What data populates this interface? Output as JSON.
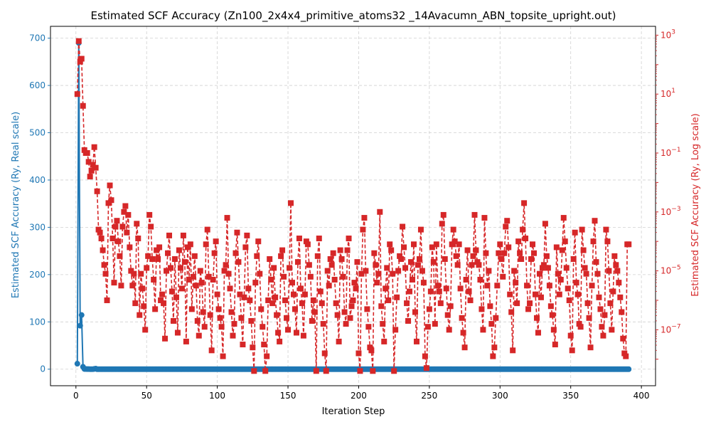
{
  "chart_data": {
    "type": "line",
    "title": "Estimated SCF Accuracy (Zn100_2x4x4_primitive_atoms32 _14Avacumn_ABN_topsite_upright.out)",
    "xlabel": "Iteration Step",
    "ylabel_left": "Estimated SCF Accuracy (Ry, Real scale)",
    "ylabel_right": "Estimated SCF Accuracy (Ry, Log scale)",
    "xlim": [
      -18,
      410
    ],
    "ylim_left": [
      -35,
      725
    ],
    "ylim_right_log10": [
      -8.9,
      3.3
    ],
    "x_ticks": [
      0,
      50,
      100,
      150,
      200,
      250,
      300,
      350,
      400
    ],
    "y_ticks_left": [
      0,
      100,
      200,
      300,
      400,
      500,
      600,
      700
    ],
    "y_ticks_right": [
      {
        "exp": 3,
        "label_base": "10",
        "label_exp": "3"
      },
      {
        "exp": 1,
        "label_base": "10",
        "label_exp": "1"
      },
      {
        "exp": -1,
        "label_base": "10",
        "label_exp": "−1"
      },
      {
        "exp": -3,
        "label_base": "10",
        "label_exp": "−3"
      },
      {
        "exp": -5,
        "label_base": "10",
        "label_exp": "−5"
      },
      {
        "exp": -7,
        "label_base": "10",
        "label_exp": "−7"
      }
    ],
    "grid": true,
    "colors": {
      "left": "#1f77b4",
      "right": "#d62728",
      "grid": "#d0d0d0",
      "axis": "#000000"
    },
    "series": [
      {
        "axis": "left",
        "color": "#1f77b4",
        "x_start": 1,
        "x_step": 1,
        "values": [
          11.6,
          690.0,
          92.0,
          114.5,
          5.0,
          0.4,
          0.3,
          0.15,
          0.1,
          0.07,
          0.03,
          0.02,
          0.5,
          1.2,
          0.01,
          0.01,
          0.005,
          0.003,
          0.001,
          0.0008,
          0.0005,
          0.0002,
          0.0001,
          8e-05,
          5e-05
        ],
        "tail_from": 26,
        "tail_to": 391,
        "tail_value": 0.0001
      },
      {
        "axis": "right",
        "color": "#d62728",
        "x_start": 1,
        "x_step": 1,
        "log10_values": [
          1.0,
          2.8,
          2.1,
          2.2,
          0.6,
          -0.9,
          -1.0,
          -1.0,
          -1.3,
          -1.8,
          -1.6,
          -1.4,
          -0.8,
          -1.5,
          -2.3,
          -3.6,
          -3.7,
          -3.9,
          -4.3,
          -4.8,
          -5.1,
          -6.0,
          -2.7,
          -2.1,
          -2.6,
          -3.9,
          -5.4,
          -3.5,
          -3.3,
          -4.0,
          -4.5,
          -5.5,
          -3.5,
          -3.0,
          -2.8,
          -3.7,
          -3.1,
          -4.2,
          -5.0,
          -5.5,
          -5.1,
          -6.1,
          -3.4,
          -3.9,
          -6.5,
          -5.1,
          -5.6,
          -6.2,
          -7.0,
          -4.9,
          -4.5,
          -3.1,
          -3.5,
          -4.6,
          -5.3,
          -6.3,
          -4.3,
          -4.6,
          -4.2,
          -6.0,
          -5.8,
          -6.1,
          -7.3,
          -5.0,
          -4.4,
          -3.8,
          -4.9,
          -5.7,
          -6.7,
          -4.6,
          -5.9,
          -7.1,
          -4.3,
          -4.9,
          -5.6,
          -3.8,
          -4.7,
          -7.4,
          -4.2,
          -5.3,
          -4.1,
          -6.3,
          -5.2,
          -4.5,
          -5.5,
          -6.7,
          -7.2,
          -5.0,
          -5.4,
          -6.4,
          -6.9,
          -4.1,
          -3.6,
          -5.2,
          -6.5,
          -7.7,
          -5.3,
          -4.4,
          -4.0,
          -5.8,
          -6.3,
          -6.6,
          -6.9,
          -7.9,
          -5.0,
          -4.8,
          -3.2,
          -5.1,
          -5.6,
          -6.4,
          -7.2,
          -6.8,
          -4.4,
          -3.7,
          -4.7,
          -5.8,
          -6.6,
          -7.5,
          -5.9,
          -4.2,
          -3.8,
          -5.6,
          -6.0,
          -6.7,
          -7.6,
          -8.4,
          -5.4,
          -4.5,
          -4.0,
          -5.1,
          -6.3,
          -6.9,
          -7.5,
          -8.4,
          -7.9,
          -6.0,
          -4.6,
          -5.3,
          -6.1,
          -4.9,
          -5.9,
          -6.5,
          -7.1,
          -7.4,
          -4.5,
          -4.3,
          -5.2,
          -6.0,
          -6.6,
          -7.0,
          -4.9,
          -2.7,
          -5.4,
          -5.8,
          -6.3,
          -7.1,
          -4.7,
          -3.9,
          -5.6,
          -6.1,
          -7.2,
          -5.8,
          -4.0,
          -4.1,
          -4.8,
          -5.2,
          -6.7,
          -6.0,
          -6.4,
          -8.4,
          -4.5,
          -3.9,
          -5.7,
          -6.1,
          -6.8,
          -7.8,
          -8.4,
          -5.0,
          -5.5,
          -4.6,
          -4.8,
          -4.4,
          -5.3,
          -6.1,
          -6.5,
          -7.4,
          -4.3,
          -4.6,
          -5.2,
          -6.4,
          -6.8,
          -4.3,
          -3.9,
          -6.6,
          -6.2,
          -6.0,
          -5.4,
          -5.6,
          -4.7,
          -7.8,
          -8.4,
          -5.1,
          -3.6,
          -3.2,
          -5.0,
          -6.3,
          -6.9,
          -7.6,
          -7.7,
          -8.4,
          -4.4,
          -4.8,
          -5.4,
          -5.1,
          -3.0,
          -6.2,
          -6.8,
          -7.4,
          -5.6,
          -4.9,
          -6.0,
          -4.1,
          -4.3,
          -5.1,
          -8.4,
          -7.0,
          -5.9,
          -5.0,
          -4.5,
          -4.6,
          -3.5,
          -4.2,
          -4.9,
          -6.1,
          -6.7,
          -5.7,
          -4.7,
          -5.3,
          -4.1,
          -6.4,
          -7.4,
          -4.8,
          -4.6,
          -3.6,
          -5.0,
          -5.4,
          -7.9,
          -8.3,
          -6.9,
          -6.3,
          -5.7,
          -4.2,
          -4.7,
          -6.8,
          -4.1,
          -5.5,
          -5.7,
          -6.1,
          -3.4,
          -3.1,
          -4.6,
          -5.6,
          -6.5,
          -7.0,
          -6.2,
          -4.1,
          -3.6,
          -4.0,
          -4.5,
          -4.8,
          -4.1,
          -5.6,
          -6.6,
          -7.1,
          -7.6,
          -5.3,
          -4.3,
          -5.7,
          -6.0,
          -4.8,
          -4.5,
          -3.1,
          -4.3,
          -4.7,
          -4.8,
          -5.3,
          -6.3,
          -7.0,
          -3.2,
          -4.4,
          -5.5,
          -5.0,
          -6.2,
          -6.8,
          -7.9,
          -7.6,
          -6.6,
          -5.5,
          -4.4,
          -4.1,
          -4.6,
          -5.2,
          -4.4,
          -3.5,
          -3.3,
          -4.2,
          -5.8,
          -6.4,
          -7.7,
          -5.0,
          -5.4,
          -6.1,
          -4.0,
          -4.4,
          -4.6,
          -3.6,
          -2.7,
          -3.9,
          -5.5,
          -6.3,
          -6.1,
          -4.6,
          -4.1,
          -4.4,
          -5.8,
          -6.6,
          -7.1,
          -5.1,
          -5.9,
          -4.9,
          -4.8,
          -3.4,
          -4.5,
          -4.9,
          -5.5,
          -6.2,
          -6.5,
          -7.0,
          -7.5,
          -4.2,
          -5.1,
          -5.8,
          -5.3,
          -4.3,
          -3.2,
          -4.0,
          -4.9,
          -5.6,
          -6.0,
          -7.2,
          -7.7,
          -4.6,
          -3.7,
          -5.4,
          -5.8,
          -6.8,
          -6.9,
          -3.6,
          -4.3,
          -4.9,
          -5.1,
          -6.1,
          -6.6,
          -7.6,
          -5.5,
          -4.0,
          -3.3,
          -4.7,
          -5.1,
          -5.9,
          -6.3,
          -6.9,
          -7.2,
          -6.5,
          -3.6,
          -4.0,
          -5.0,
          -6.1,
          -7.0,
          -5.7,
          -4.5,
          -4.8,
          -5.0,
          -5.4,
          -5.9,
          -6.4,
          -7.3,
          -7.8,
          -7.9,
          -4.1,
          -4.1
        ]
      }
    ]
  }
}
